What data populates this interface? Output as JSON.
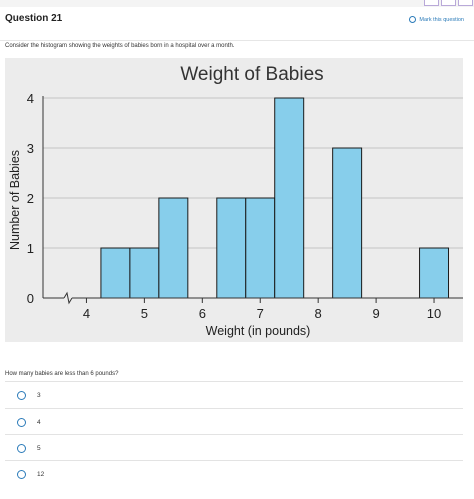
{
  "question": {
    "title": "Question 21",
    "mark_label": "Mark this question",
    "prompt": "Consider the histogram showing the weights of babies born in a hospital over a month.",
    "ask": "How many babies are less than 6 pounds?"
  },
  "options": [
    {
      "label": "3"
    },
    {
      "label": "4"
    },
    {
      "label": "5"
    },
    {
      "label": "12"
    }
  ],
  "chart_data": {
    "type": "bar",
    "title": "Weight of Babies",
    "xlabel": "Weight (in pounds)",
    "ylabel": "Number of Babies",
    "bin_width": 0.5,
    "bins": [
      {
        "start": 4.25,
        "end": 4.75,
        "count": 1
      },
      {
        "start": 4.75,
        "end": 5.25,
        "count": 1
      },
      {
        "start": 5.25,
        "end": 5.75,
        "count": 2
      },
      {
        "start": 6.25,
        "end": 6.75,
        "count": 2
      },
      {
        "start": 6.75,
        "end": 7.25,
        "count": 2
      },
      {
        "start": 7.25,
        "end": 7.75,
        "count": 4
      },
      {
        "start": 8.25,
        "end": 8.75,
        "count": 3
      },
      {
        "start": 9.75,
        "end": 10.25,
        "count": 1
      }
    ],
    "xticks": [
      4,
      5,
      6,
      7,
      8,
      9,
      10
    ],
    "yticks": [
      0,
      1,
      2,
      3,
      4
    ],
    "xlim": [
      3.25,
      10.5
    ],
    "ylim": [
      0,
      4
    ],
    "axis_break": true,
    "grid": true,
    "bar_color": "#87ceeb"
  }
}
